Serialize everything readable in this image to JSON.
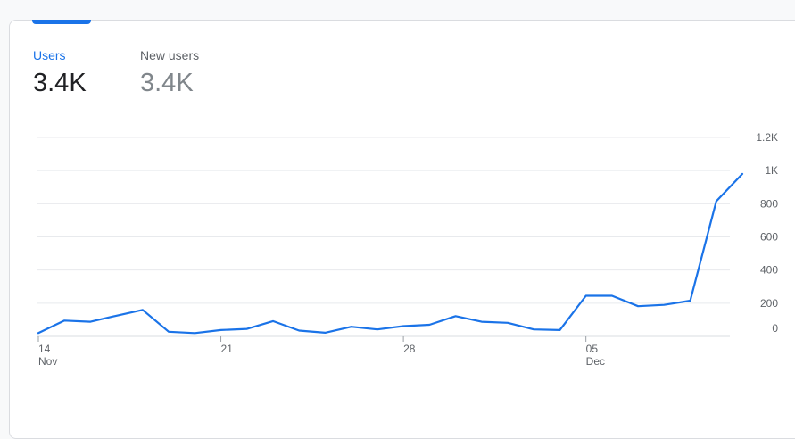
{
  "tabs": [
    {
      "label": "Users",
      "value": "3.4K",
      "selected": true
    },
    {
      "label": "New users",
      "value": "3.4K",
      "selected": false
    }
  ],
  "colors": {
    "accent": "#1a73e8",
    "gridline": "#e8eaed",
    "axis_text": "#5f6368"
  },
  "chart_data": {
    "type": "line",
    "title": "",
    "xlabel": "",
    "ylabel": "",
    "ylim": [
      0,
      1200
    ],
    "y_ticks": [
      {
        "value": 0,
        "label": "0"
      },
      {
        "value": 200,
        "label": "200"
      },
      {
        "value": 400,
        "label": "400"
      },
      {
        "value": 600,
        "label": "600"
      },
      {
        "value": 800,
        "label": "800"
      },
      {
        "value": 1000,
        "label": "1K"
      },
      {
        "value": 1200,
        "label": "1.2K"
      }
    ],
    "x_ticks": [
      {
        "date": "2023-11-14",
        "day": "14",
        "month": "Nov"
      },
      {
        "date": "2023-11-21",
        "day": "21",
        "month": ""
      },
      {
        "date": "2023-11-28",
        "day": "28",
        "month": ""
      },
      {
        "date": "2023-12-05",
        "day": "05",
        "month": "Dec"
      }
    ],
    "grid": true,
    "series": [
      {
        "name": "Users",
        "color": "#1a73e8",
        "points": [
          {
            "x": "2023-11-14",
            "y": 20
          },
          {
            "x": "2023-11-15",
            "y": 95
          },
          {
            "x": "2023-11-16",
            "y": 88
          },
          {
            "x": "2023-11-17",
            "y": 125
          },
          {
            "x": "2023-11-18",
            "y": 160
          },
          {
            "x": "2023-11-19",
            "y": 28
          },
          {
            "x": "2023-11-20",
            "y": 20
          },
          {
            "x": "2023-11-21",
            "y": 38
          },
          {
            "x": "2023-11-22",
            "y": 45
          },
          {
            "x": "2023-11-23",
            "y": 92
          },
          {
            "x": "2023-11-24",
            "y": 35
          },
          {
            "x": "2023-11-25",
            "y": 22
          },
          {
            "x": "2023-11-26",
            "y": 58
          },
          {
            "x": "2023-11-27",
            "y": 42
          },
          {
            "x": "2023-11-28",
            "y": 62
          },
          {
            "x": "2023-11-29",
            "y": 70
          },
          {
            "x": "2023-11-30",
            "y": 122
          },
          {
            "x": "2023-12-01",
            "y": 88
          },
          {
            "x": "2023-12-02",
            "y": 82
          },
          {
            "x": "2023-12-03",
            "y": 42
          },
          {
            "x": "2023-12-04",
            "y": 38
          },
          {
            "x": "2023-12-05",
            "y": 245
          },
          {
            "x": "2023-12-06",
            "y": 245
          },
          {
            "x": "2023-12-07",
            "y": 182
          },
          {
            "x": "2023-12-08",
            "y": 190
          },
          {
            "x": "2023-12-09",
            "y": 215
          },
          {
            "x": "2023-12-10",
            "y": 815
          },
          {
            "x": "2023-12-11",
            "y": 980
          }
        ]
      }
    ]
  }
}
